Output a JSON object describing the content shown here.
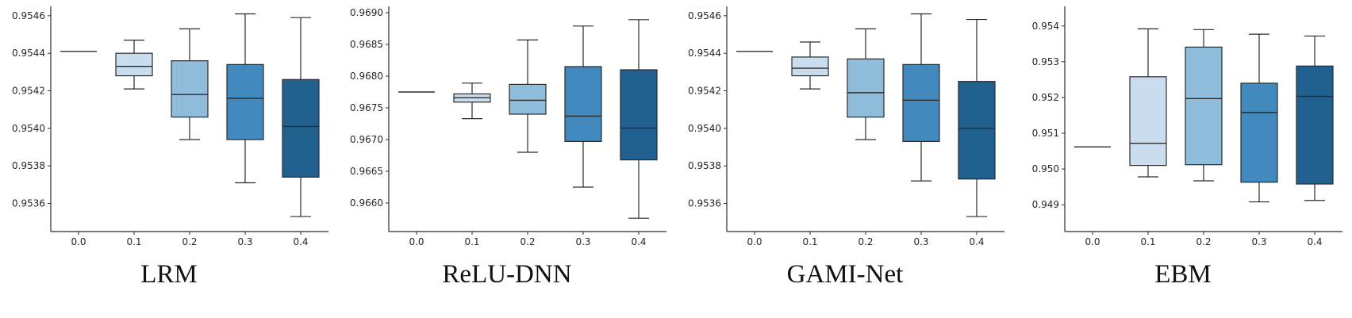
{
  "palette": {
    "box_fills": [
      "#ffffff",
      "#c9ddee",
      "#8fbcda",
      "#4289bd",
      "#21618f"
    ],
    "edge": "#2b2b2b",
    "background": "#ffffff"
  },
  "chart_data": [
    {
      "type": "box",
      "title": "LRM",
      "xlabel": "",
      "ylabel": "",
      "legend": "none",
      "grid": false,
      "xticklabels": [
        "0.0",
        "0.1",
        "0.2",
        "0.3",
        "0.4"
      ],
      "ylim": [
        0.95345,
        0.95465
      ],
      "yticks": [
        {
          "v": 0.9536,
          "label": "0.9536"
        },
        {
          "v": 0.9538,
          "label": "0.9538"
        },
        {
          "v": 0.954,
          "label": "0.9540"
        },
        {
          "v": 0.9542,
          "label": "0.9542"
        },
        {
          "v": 0.9544,
          "label": "0.9544"
        },
        {
          "v": 0.9546,
          "label": "0.9546"
        }
      ],
      "boxes": [
        {
          "x": "0.0",
          "whislo": 0.95441,
          "q1": 0.95441,
          "med": 0.95441,
          "q3": 0.95441,
          "whishi": 0.95441,
          "color": "#ffffff"
        },
        {
          "x": "0.1",
          "whislo": 0.95421,
          "q1": 0.95428,
          "med": 0.95433,
          "q3": 0.9544,
          "whishi": 0.95447,
          "color": "#c9ddee"
        },
        {
          "x": "0.2",
          "whislo": 0.95394,
          "q1": 0.95406,
          "med": 0.95418,
          "q3": 0.95436,
          "whishi": 0.95453,
          "color": "#8fbcda"
        },
        {
          "x": "0.3",
          "whislo": 0.95371,
          "q1": 0.95394,
          "med": 0.95416,
          "q3": 0.95434,
          "whishi": 0.95461,
          "color": "#4289bd"
        },
        {
          "x": "0.4",
          "whislo": 0.95353,
          "q1": 0.95374,
          "med": 0.95401,
          "q3": 0.95426,
          "whishi": 0.95459,
          "color": "#21618f"
        }
      ]
    },
    {
      "type": "box",
      "title": "ReLU-DNN",
      "xlabel": "",
      "ylabel": "",
      "legend": "none",
      "grid": false,
      "xticklabels": [
        "0.0",
        "0.1",
        "0.2",
        "0.3",
        "0.4"
      ],
      "ylim": [
        0.96555,
        0.9691
      ],
      "yticks": [
        {
          "v": 0.966,
          "label": "0.9660"
        },
        {
          "v": 0.9665,
          "label": "0.9665"
        },
        {
          "v": 0.967,
          "label": "0.9670"
        },
        {
          "v": 0.9675,
          "label": "0.9675"
        },
        {
          "v": 0.968,
          "label": "0.9680"
        },
        {
          "v": 0.9685,
          "label": "0.9685"
        },
        {
          "v": 0.969,
          "label": "0.9690"
        }
      ],
      "boxes": [
        {
          "x": "0.0",
          "whislo": 0.96775,
          "q1": 0.96775,
          "med": 0.96775,
          "q3": 0.96775,
          "whishi": 0.96775,
          "color": "#ffffff"
        },
        {
          "x": "0.1",
          "whislo": 0.96733,
          "q1": 0.96759,
          "med": 0.96766,
          "q3": 0.96772,
          "whishi": 0.96789,
          "color": "#c9ddee"
        },
        {
          "x": "0.2",
          "whislo": 0.9668,
          "q1": 0.9674,
          "med": 0.96762,
          "q3": 0.96787,
          "whishi": 0.96857,
          "color": "#8fbcda"
        },
        {
          "x": "0.3",
          "whislo": 0.96625,
          "q1": 0.96697,
          "med": 0.96737,
          "q3": 0.96815,
          "whishi": 0.96879,
          "color": "#4289bd"
        },
        {
          "x": "0.4",
          "whislo": 0.96576,
          "q1": 0.96668,
          "med": 0.96718,
          "q3": 0.9681,
          "whishi": 0.96889,
          "color": "#21618f"
        }
      ]
    },
    {
      "type": "box",
      "title": "GAMI-Net",
      "xlabel": "",
      "ylabel": "",
      "legend": "none",
      "grid": false,
      "xticklabels": [
        "0.0",
        "0.1",
        "0.2",
        "0.3",
        "0.4"
      ],
      "ylim": [
        0.95345,
        0.95465
      ],
      "yticks": [
        {
          "v": 0.9536,
          "label": "0.9536"
        },
        {
          "v": 0.9538,
          "label": "0.9538"
        },
        {
          "v": 0.954,
          "label": "0.9540"
        },
        {
          "v": 0.9542,
          "label": "0.9542"
        },
        {
          "v": 0.9544,
          "label": "0.9544"
        },
        {
          "v": 0.9546,
          "label": "0.9546"
        }
      ],
      "boxes": [
        {
          "x": "0.0",
          "whislo": 0.95441,
          "q1": 0.95441,
          "med": 0.95441,
          "q3": 0.95441,
          "whishi": 0.95441,
          "color": "#ffffff"
        },
        {
          "x": "0.1",
          "whislo": 0.95421,
          "q1": 0.95428,
          "med": 0.95432,
          "q3": 0.95438,
          "whishi": 0.95446,
          "color": "#c9ddee"
        },
        {
          "x": "0.2",
          "whislo": 0.95394,
          "q1": 0.95406,
          "med": 0.95419,
          "q3": 0.95437,
          "whishi": 0.95453,
          "color": "#8fbcda"
        },
        {
          "x": "0.3",
          "whislo": 0.95372,
          "q1": 0.95393,
          "med": 0.95415,
          "q3": 0.95434,
          "whishi": 0.95461,
          "color": "#4289bd"
        },
        {
          "x": "0.4",
          "whislo": 0.95353,
          "q1": 0.95373,
          "med": 0.954,
          "q3": 0.95425,
          "whishi": 0.95458,
          "color": "#21618f"
        }
      ]
    },
    {
      "type": "box",
      "title": "EBM",
      "xlabel": "",
      "ylabel": "",
      "legend": "none",
      "grid": false,
      "xticklabels": [
        "0.0",
        "0.1",
        "0.2",
        "0.3",
        "0.4"
      ],
      "ylim": [
        0.94825,
        0.95455
      ],
      "yticks": [
        {
          "v": 0.949,
          "label": "0.949"
        },
        {
          "v": 0.95,
          "label": "0.950"
        },
        {
          "v": 0.951,
          "label": "0.951"
        },
        {
          "v": 0.952,
          "label": "0.952"
        },
        {
          "v": 0.953,
          "label": "0.953"
        },
        {
          "v": 0.954,
          "label": "0.954"
        }
      ],
      "boxes": [
        {
          "x": "0.0",
          "whislo": 0.95062,
          "q1": 0.95062,
          "med": 0.95062,
          "q3": 0.95062,
          "whishi": 0.95062,
          "color": "#ffffff"
        },
        {
          "x": "0.1",
          "whislo": 0.94978,
          "q1": 0.9501,
          "med": 0.95072,
          "q3": 0.95258,
          "whishi": 0.95392,
          "color": "#c9ddee"
        },
        {
          "x": "0.2",
          "whislo": 0.94967,
          "q1": 0.95012,
          "med": 0.95197,
          "q3": 0.95341,
          "whishi": 0.9539,
          "color": "#8fbcda"
        },
        {
          "x": "0.3",
          "whislo": 0.94908,
          "q1": 0.94963,
          "med": 0.95158,
          "q3": 0.9524,
          "whishi": 0.95377,
          "color": "#4289bd"
        },
        {
          "x": "0.4",
          "whislo": 0.94912,
          "q1": 0.94958,
          "med": 0.95203,
          "q3": 0.95288,
          "whishi": 0.95372,
          "color": "#21618f"
        }
      ]
    }
  ]
}
